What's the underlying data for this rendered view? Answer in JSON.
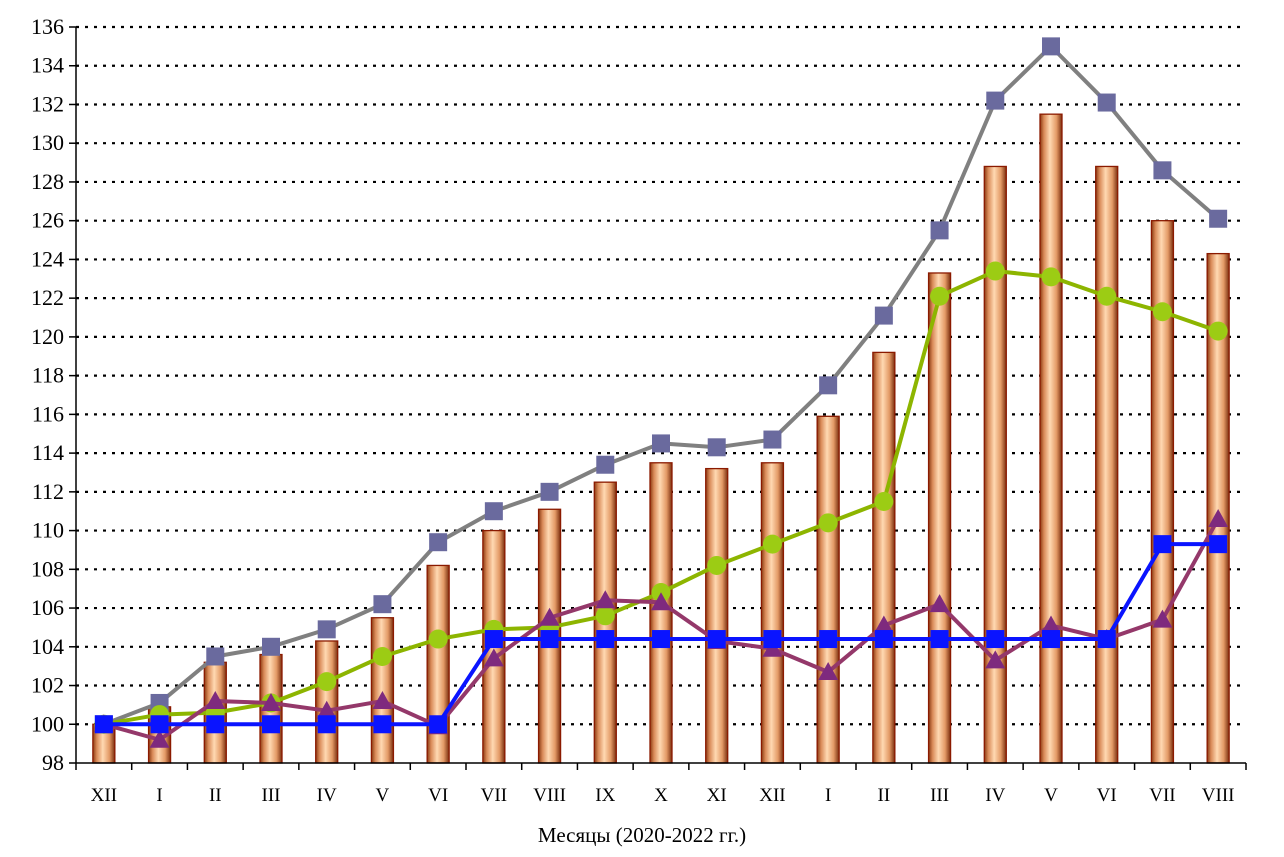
{
  "chart_data": {
    "type": "bar",
    "title": "",
    "xlabel": "Месяцы (2020-2022 гг.)",
    "ylabel": "",
    "ylim": [
      98,
      136
    ],
    "yticks": [
      98,
      100,
      102,
      104,
      106,
      108,
      110,
      112,
      114,
      116,
      118,
      120,
      122,
      124,
      126,
      128,
      130,
      132,
      134,
      136
    ],
    "grid": true,
    "legend": "none",
    "categories": [
      "XII",
      "I",
      "II",
      "III",
      "IV",
      "V",
      "VI",
      "VII",
      "VIII",
      "IX",
      "X",
      "XI",
      "XII",
      "I",
      "II",
      "III",
      "IV",
      "V",
      "VI",
      "VII",
      "VIII"
    ],
    "series": [
      {
        "type": "bar",
        "color": "#f4b88a",
        "values": [
          100.0,
          100.9,
          103.2,
          103.6,
          104.3,
          105.5,
          108.2,
          110.0,
          111.1,
          112.5,
          113.5,
          113.2,
          113.5,
          115.9,
          119.2,
          123.3,
          128.8,
          131.5,
          128.8,
          126.0,
          124.3
        ]
      },
      {
        "type": "line",
        "color": "#808080",
        "marker": "square",
        "marker_color": "#6a6a9e",
        "values": [
          100.0,
          101.1,
          103.5,
          104.0,
          104.9,
          106.2,
          109.4,
          111.0,
          112.0,
          113.4,
          114.5,
          114.3,
          114.7,
          117.5,
          121.1,
          125.5,
          132.2,
          135.0,
          132.1,
          128.6,
          126.1
        ]
      },
      {
        "type": "line",
        "color": "#8db500",
        "marker": "circle",
        "marker_color": "#9ccc14",
        "values": [
          100.0,
          100.5,
          100.6,
          101.1,
          102.2,
          103.5,
          104.4,
          104.9,
          105.0,
          105.6,
          106.8,
          108.2,
          109.3,
          110.4,
          111.5,
          122.1,
          123.4,
          123.1,
          122.1,
          121.3,
          120.3
        ]
      },
      {
        "type": "line",
        "color": "#94386a",
        "marker": "triangle",
        "marker_color": "#7e2a7e",
        "values": [
          100.0,
          99.2,
          101.2,
          101.1,
          100.7,
          101.2,
          99.9,
          103.4,
          105.5,
          106.4,
          106.3,
          104.3,
          103.9,
          102.7,
          105.1,
          106.2,
          103.3,
          105.1,
          104.4,
          105.4,
          110.6
        ]
      },
      {
        "type": "line",
        "color": "#0a14ff",
        "marker": "square",
        "marker_color": "#0a14ff",
        "values": [
          100.0,
          100.0,
          100.0,
          100.0,
          100.0,
          100.0,
          100.0,
          104.4,
          104.4,
          104.4,
          104.4,
          104.4,
          104.4,
          104.4,
          104.4,
          104.4,
          104.4,
          104.4,
          104.4,
          109.3,
          109.3
        ]
      }
    ]
  }
}
